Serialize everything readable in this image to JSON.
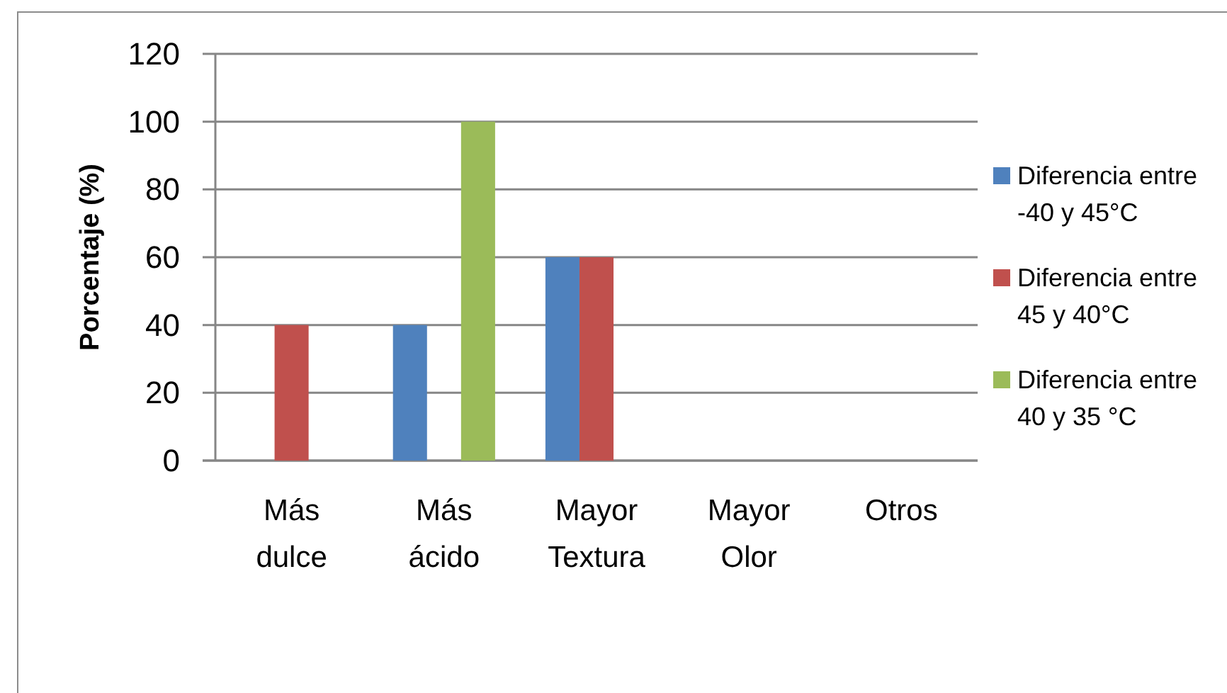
{
  "chart_data": {
    "type": "bar",
    "categories": [
      "Más dulce",
      "Más ácido",
      "Mayor Textura",
      "Mayor Olor",
      "Otros"
    ],
    "series": [
      {
        "name": "Diferencia entre -40 y 45°C",
        "color": "#4f81bd",
        "values": [
          0,
          40,
          60,
          0,
          0
        ]
      },
      {
        "name": "Diferencia entre 45 y 40°C",
        "color": "#c0504d",
        "values": [
          40,
          0,
          60,
          0,
          0
        ]
      },
      {
        "name": "Diferencia entre 40 y 35 °C",
        "color": "#9bbb59",
        "values": [
          0,
          100,
          0,
          0,
          0
        ]
      }
    ],
    "ylabel": "Porcentaje (%)",
    "ylim": [
      0,
      120
    ],
    "yticks": [
      0,
      20,
      40,
      60,
      80,
      100,
      120
    ],
    "grid": "y",
    "legend": "right"
  }
}
